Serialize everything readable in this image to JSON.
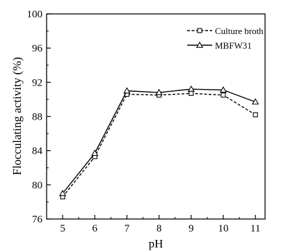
{
  "chart_data": {
    "type": "line",
    "xlabel": "pH",
    "ylabel": "Flocculating activity (%)",
    "x": [
      5,
      6,
      7,
      8,
      9,
      10,
      11
    ],
    "xlim": [
      4.5,
      11.3
    ],
    "ylim": [
      76,
      100
    ],
    "xticks": [
      5,
      6,
      7,
      8,
      9,
      10,
      11
    ],
    "yticks": [
      76,
      80,
      84,
      88,
      92,
      96,
      100
    ],
    "grid": false,
    "legend_position": "top-right",
    "series": [
      {
        "name": "Culture broth",
        "values": [
          78.6,
          83.3,
          90.6,
          90.5,
          90.7,
          90.5,
          88.2
        ],
        "line_style": "dashed",
        "marker": "square",
        "color": "#000000"
      },
      {
        "name": "MBFW31",
        "values": [
          79.0,
          83.7,
          91.0,
          90.8,
          91.2,
          91.1,
          89.7
        ],
        "line_style": "solid",
        "marker": "triangle",
        "color": "#000000"
      }
    ]
  }
}
